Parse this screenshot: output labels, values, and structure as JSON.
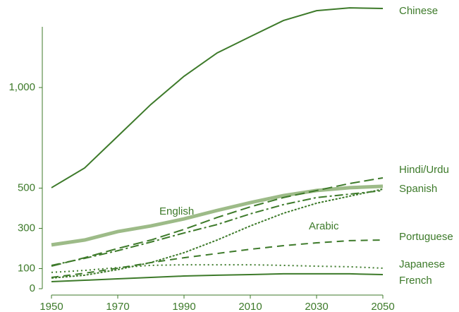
{
  "chart_data": {
    "type": "line",
    "x": [
      1950,
      1960,
      1970,
      1980,
      1990,
      2000,
      2010,
      2020,
      2030,
      2040,
      2050
    ],
    "series": [
      {
        "name": "Chinese",
        "color": "#3d7a2a",
        "width": 2,
        "dash": "none",
        "values": [
          502,
          600,
          758,
          916,
          1056,
          1172,
          1253,
          1333,
          1382,
          1396,
          1393
        ]
      },
      {
        "name": "English",
        "color": "#9dbb88",
        "width": 5,
        "dash": "none",
        "values": [
          218,
          242,
          284,
          312,
          347,
          389,
          428,
          463,
          488,
          502,
          509
        ]
      },
      {
        "name": "Hindi/Urdu",
        "color": "#3d7a2a",
        "width": 2,
        "dash": "14,6",
        "values": [
          112,
          154,
          200,
          242,
          295,
          354,
          407,
          453,
          488,
          523,
          551
        ]
      },
      {
        "name": "Spanish",
        "color": "#3d7a2a",
        "width": 2,
        "dash": "12,4,3,4",
        "values": [
          116,
          151,
          189,
          232,
          277,
          319,
          372,
          418,
          453,
          470,
          488
        ]
      },
      {
        "name": "Arabic",
        "color": "#3d7a2a",
        "width": 2,
        "dash": "3,2",
        "values": [
          53,
          67,
          95,
          130,
          179,
          242,
          312,
          375,
          425,
          460,
          495
        ]
      },
      {
        "name": "Portuguese",
        "color": "#3d7a2a",
        "width": 2,
        "dash": "10,7",
        "values": [
          56,
          77,
          102,
          130,
          154,
          175,
          196,
          214,
          228,
          239,
          242
        ]
      },
      {
        "name": "Japanese",
        "color": "#3d7a2a",
        "width": 2,
        "dash": "2,4",
        "values": [
          81,
          91,
          105,
          116,
          119,
          119,
          119,
          116,
          112,
          109,
          102
        ]
      },
      {
        "name": "French",
        "color": "#3d7a2a",
        "width": 2,
        "dash": "none",
        "values": [
          35,
          42,
          49,
          56,
          63,
          67,
          70,
          74,
          74,
          74,
          70
        ]
      }
    ],
    "xlim": [
      1950,
      2050
    ],
    "xticks": [
      1950,
      1970,
      1990,
      2010,
      2030,
      2050
    ],
    "ylim": [
      0,
      1400
    ],
    "yticks": [
      0,
      100,
      300,
      500,
      {
        "value": 1000,
        "label": "1,000"
      }
    ]
  }
}
